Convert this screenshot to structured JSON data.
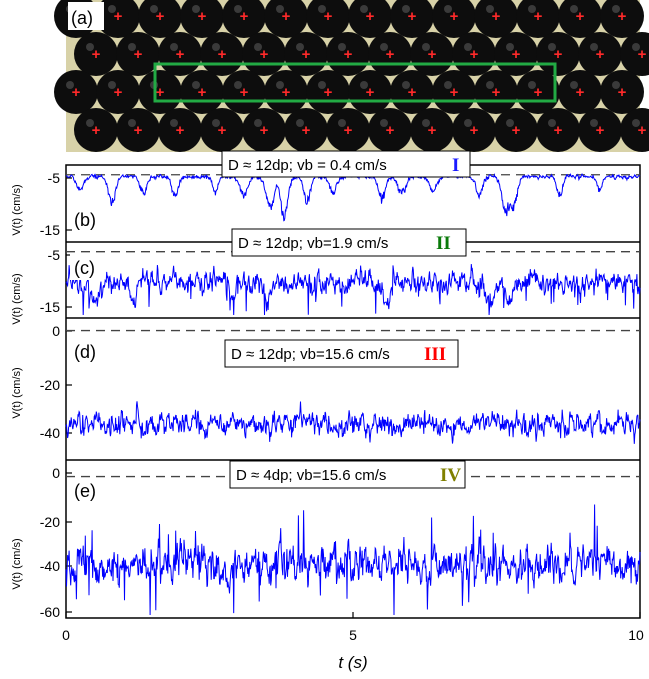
{
  "figure": {
    "panel_a_label": "(a)",
    "panel_a_marker": "+",
    "x_axis_label": "t (s)",
    "x_ticks": [
      "0",
      "5",
      "10"
    ]
  },
  "chart_data": [
    {
      "type": "line",
      "panel": "(b)",
      "ylabel": "V(t) (cm/s)",
      "yticks": [
        "-5",
        "-15"
      ],
      "ylim": [
        -18,
        0.8
      ],
      "reference_line": -0.5,
      "annotation": {
        "text": "D ≈ 12dp; vb = 0.4 cm/s",
        "roman": "I",
        "roman_color": "#1a1aff"
      },
      "signal": {
        "mean": -0.8,
        "noise": 0.6,
        "dips": [
          [
            0.25,
            -5
          ],
          [
            0.8,
            -9
          ],
          [
            1.35,
            -6
          ],
          [
            1.9,
            -7
          ],
          [
            2.6,
            -6
          ],
          [
            3.1,
            -7
          ],
          [
            3.55,
            -11
          ],
          [
            3.8,
            -14
          ],
          [
            4.2,
            -9
          ],
          [
            4.65,
            -6
          ],
          [
            5.5,
            -8
          ],
          [
            5.85,
            -6
          ],
          [
            6.4,
            -5
          ],
          [
            7.2,
            -7
          ],
          [
            7.65,
            -12
          ],
          [
            7.8,
            -10
          ],
          [
            8.6,
            -7
          ],
          [
            9.3,
            -5
          ]
        ]
      },
      "series": [
        {
          "color": "#0000ff"
        }
      ]
    },
    {
      "type": "line",
      "panel": "(c)",
      "ylabel": "V(t) (cm/s)",
      "yticks": [
        "-5",
        "-15"
      ],
      "ylim": [
        -18,
        0.8
      ],
      "reference_line": -0.5,
      "annotation": {
        "text": "D ≈ 12dp; vb=1.9 cm/s",
        "roman": "II",
        "roman_color": "#0a7a0a"
      },
      "signal": {
        "mean": -9,
        "noise": 3.0,
        "dips": [
          [
            0.5,
            -16
          ],
          [
            1.2,
            -14
          ],
          [
            2.9,
            -15
          ],
          [
            3.5,
            -15
          ],
          [
            5.6,
            -16
          ],
          [
            7.4,
            -17
          ],
          [
            7.7,
            -15
          ]
        ]
      },
      "series": [
        {
          "color": "#0000ff"
        }
      ]
    },
    {
      "type": "line",
      "panel": "(d)",
      "ylabel": "V(t) (cm/s)",
      "yticks": [
        "0",
        "-20",
        "-40"
      ],
      "ylim": [
        -50,
        3
      ],
      "reference_line": 0,
      "annotation": {
        "text": "D ≈ 12dp; vb=15.6 cm/s",
        "roman": "III",
        "roman_color": "#ff0000"
      },
      "signal": {
        "mean": -37,
        "noise": 4.5,
        "dips": []
      },
      "series": [
        {
          "color": "#0000ff"
        }
      ]
    },
    {
      "type": "line",
      "panel": "(e)",
      "ylabel": "V(t) (cm/s)",
      "yticks": [
        "0",
        "-20",
        "-40",
        "-60"
      ],
      "ylim": [
        -60,
        5
      ],
      "reference_line": 0,
      "annotation": {
        "text": "D ≈ 4dp; vb=15.6 cm/s",
        "roman": "IV",
        "roman_color": "#808000"
      },
      "signal": {
        "mean": -38,
        "noise": 8.0,
        "dips": []
      },
      "series": [
        {
          "color": "#0000ff"
        }
      ]
    }
  ]
}
